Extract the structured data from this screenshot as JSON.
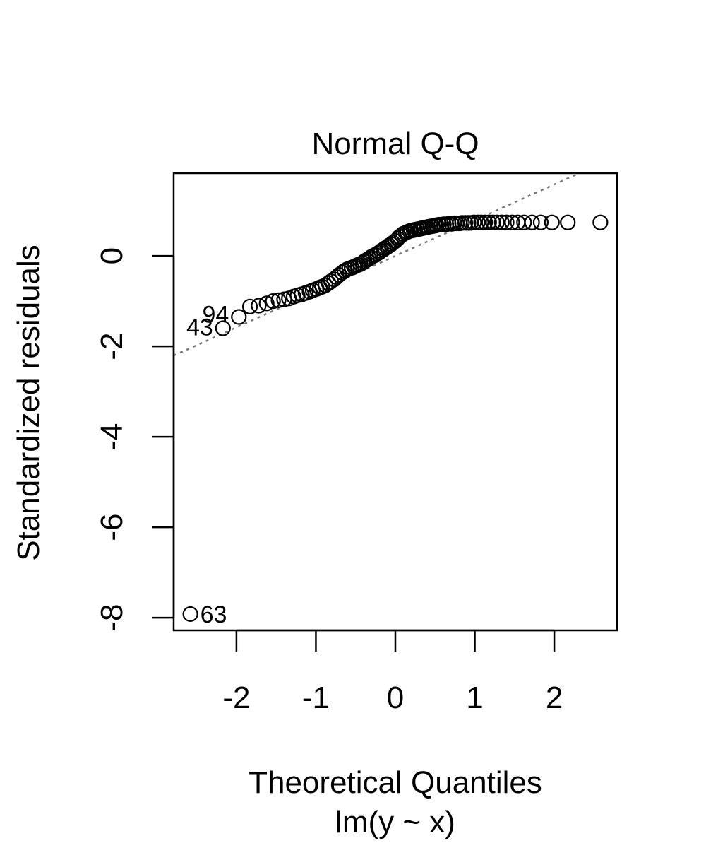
{
  "chart_data": {
    "type": "scatter",
    "title": "Normal Q-Q",
    "xlabel": "Theoretical Quantiles",
    "sublabel": "lm(y ~ x)",
    "ylabel": "Standardized residuals",
    "xlim": [
      -2.79,
      2.79
    ],
    "ylim": [
      -8.28,
      1.83
    ],
    "x_ticks": [
      -2,
      -1,
      0,
      1,
      2
    ],
    "y_ticks": [
      0,
      -2,
      -4,
      -6,
      -8
    ],
    "grid": false,
    "reference_line": {
      "style": "dotted",
      "color": "#777777",
      "slope": 0.79,
      "intercept": 0.0
    },
    "point_labels": [
      {
        "text": "63",
        "x": -2.58,
        "y": -7.92
      },
      {
        "text": "43",
        "x": -2.17,
        "y": -1.6
      },
      {
        "text": "94",
        "x": -1.97,
        "y": -1.35
      }
    ],
    "points": {
      "x": [
        -2.58,
        -2.17,
        -1.97,
        -1.83,
        -1.72,
        -1.62,
        -1.54,
        -1.47,
        -1.4,
        -1.34,
        -1.28,
        -1.23,
        -1.18,
        -1.13,
        -1.08,
        -1.04,
        -0.99,
        -0.95,
        -0.92,
        -0.88,
        -0.84,
        -0.81,
        -0.77,
        -0.74,
        -0.71,
        -0.67,
        -0.64,
        -0.61,
        -0.58,
        -0.55,
        -0.52,
        -0.5,
        -0.47,
        -0.44,
        -0.41,
        -0.39,
        -0.36,
        -0.33,
        -0.31,
        -0.28,
        -0.25,
        -0.23,
        -0.2,
        -0.18,
        -0.15,
        -0.13,
        -0.1,
        -0.08,
        -0.05,
        -0.03,
        0.0,
        0.03,
        0.05,
        0.08,
        0.1,
        0.13,
        0.15,
        0.18,
        0.2,
        0.23,
        0.25,
        0.28,
        0.31,
        0.33,
        0.36,
        0.39,
        0.41,
        0.44,
        0.47,
        0.5,
        0.52,
        0.55,
        0.58,
        0.61,
        0.64,
        0.67,
        0.71,
        0.74,
        0.77,
        0.81,
        0.84,
        0.88,
        0.92,
        0.95,
        0.99,
        1.04,
        1.08,
        1.13,
        1.18,
        1.23,
        1.28,
        1.34,
        1.4,
        1.47,
        1.54,
        1.62,
        1.72,
        1.83,
        1.97,
        2.17,
        2.58
      ],
      "y": [
        -7.92,
        -1.6,
        -1.35,
        -1.12,
        -1.1,
        -1.05,
        -1.0,
        -0.98,
        -0.96,
        -0.94,
        -0.9,
        -0.87,
        -0.85,
        -0.82,
        -0.79,
        -0.76,
        -0.73,
        -0.7,
        -0.68,
        -0.65,
        -0.6,
        -0.56,
        -0.52,
        -0.47,
        -0.42,
        -0.37,
        -0.33,
        -0.3,
        -0.28,
        -0.26,
        -0.24,
        -0.22,
        -0.2,
        -0.18,
        -0.15,
        -0.12,
        -0.09,
        -0.06,
        -0.03,
        0.0,
        0.02,
        0.05,
        0.08,
        0.11,
        0.14,
        0.17,
        0.2,
        0.23,
        0.26,
        0.29,
        0.33,
        0.38,
        0.42,
        0.46,
        0.49,
        0.51,
        0.53,
        0.55,
        0.56,
        0.57,
        0.58,
        0.59,
        0.6,
        0.61,
        0.62,
        0.63,
        0.64,
        0.65,
        0.66,
        0.67,
        0.68,
        0.69,
        0.69,
        0.7,
        0.7,
        0.71,
        0.71,
        0.72,
        0.72,
        0.72,
        0.73,
        0.73,
        0.73,
        0.73,
        0.74,
        0.74,
        0.74,
        0.74,
        0.74,
        0.74,
        0.74,
        0.74,
        0.74,
        0.74,
        0.74,
        0.74,
        0.74,
        0.74,
        0.74,
        0.74,
        0.74
      ]
    }
  }
}
